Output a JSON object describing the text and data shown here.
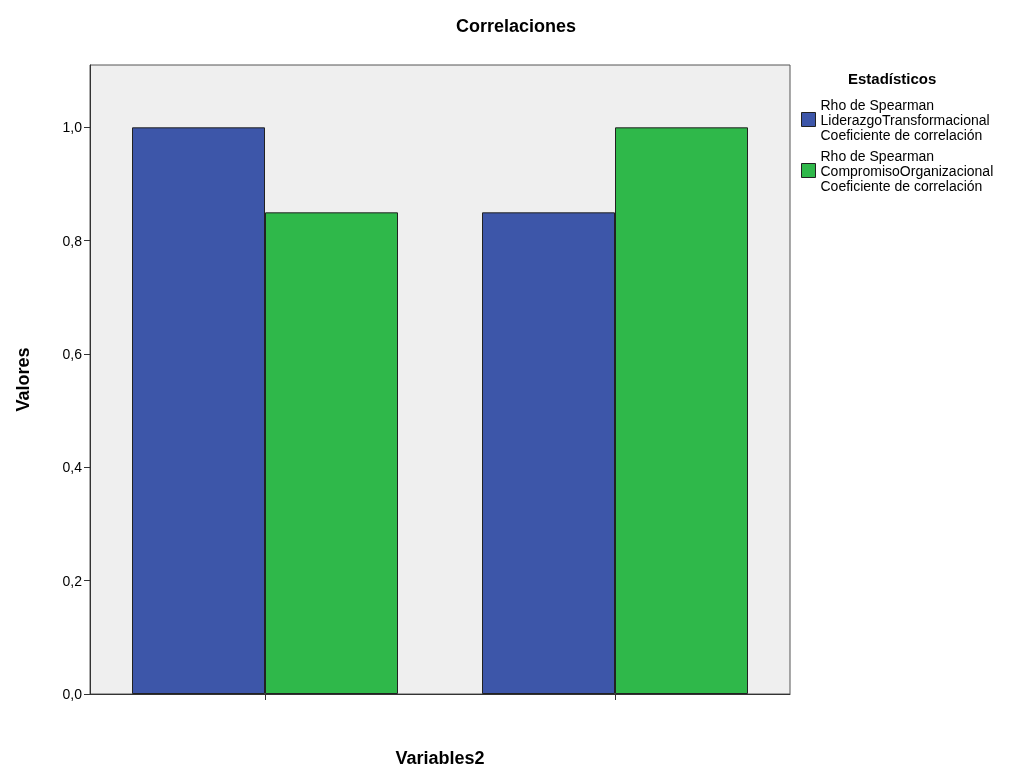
{
  "chart_data": {
    "type": "bar",
    "title": "Correlaciones",
    "xlabel": "Variables2",
    "ylabel": "Valores",
    "legend_title": "Estadísticos",
    "categories": [
      null,
      null
    ],
    "series": [
      {
        "name": "Rho de Spearman\nLiderazgoTransformacional\nCoeficiente de correlación",
        "color": "#3d56a9",
        "values": [
          1.0,
          0.85
        ]
      },
      {
        "name": "Rho de Spearman\nCompromisoOrganizacional\nCoeficiente de correlación",
        "color": "#2fb84a",
        "values": [
          0.85,
          1.0
        ]
      }
    ],
    "ylim": [
      0,
      1.11
    ],
    "yticks": [
      {
        "value": 0,
        "label": "0,0"
      },
      {
        "value": 0.2,
        "label": "0,2"
      },
      {
        "value": 0.4,
        "label": "0,4"
      },
      {
        "value": 0.6,
        "label": "0,6"
      },
      {
        "value": 0.8,
        "label": "0,8"
      },
      {
        "value": 1,
        "label": "1,0"
      }
    ],
    "grid": false,
    "legend": "right"
  }
}
